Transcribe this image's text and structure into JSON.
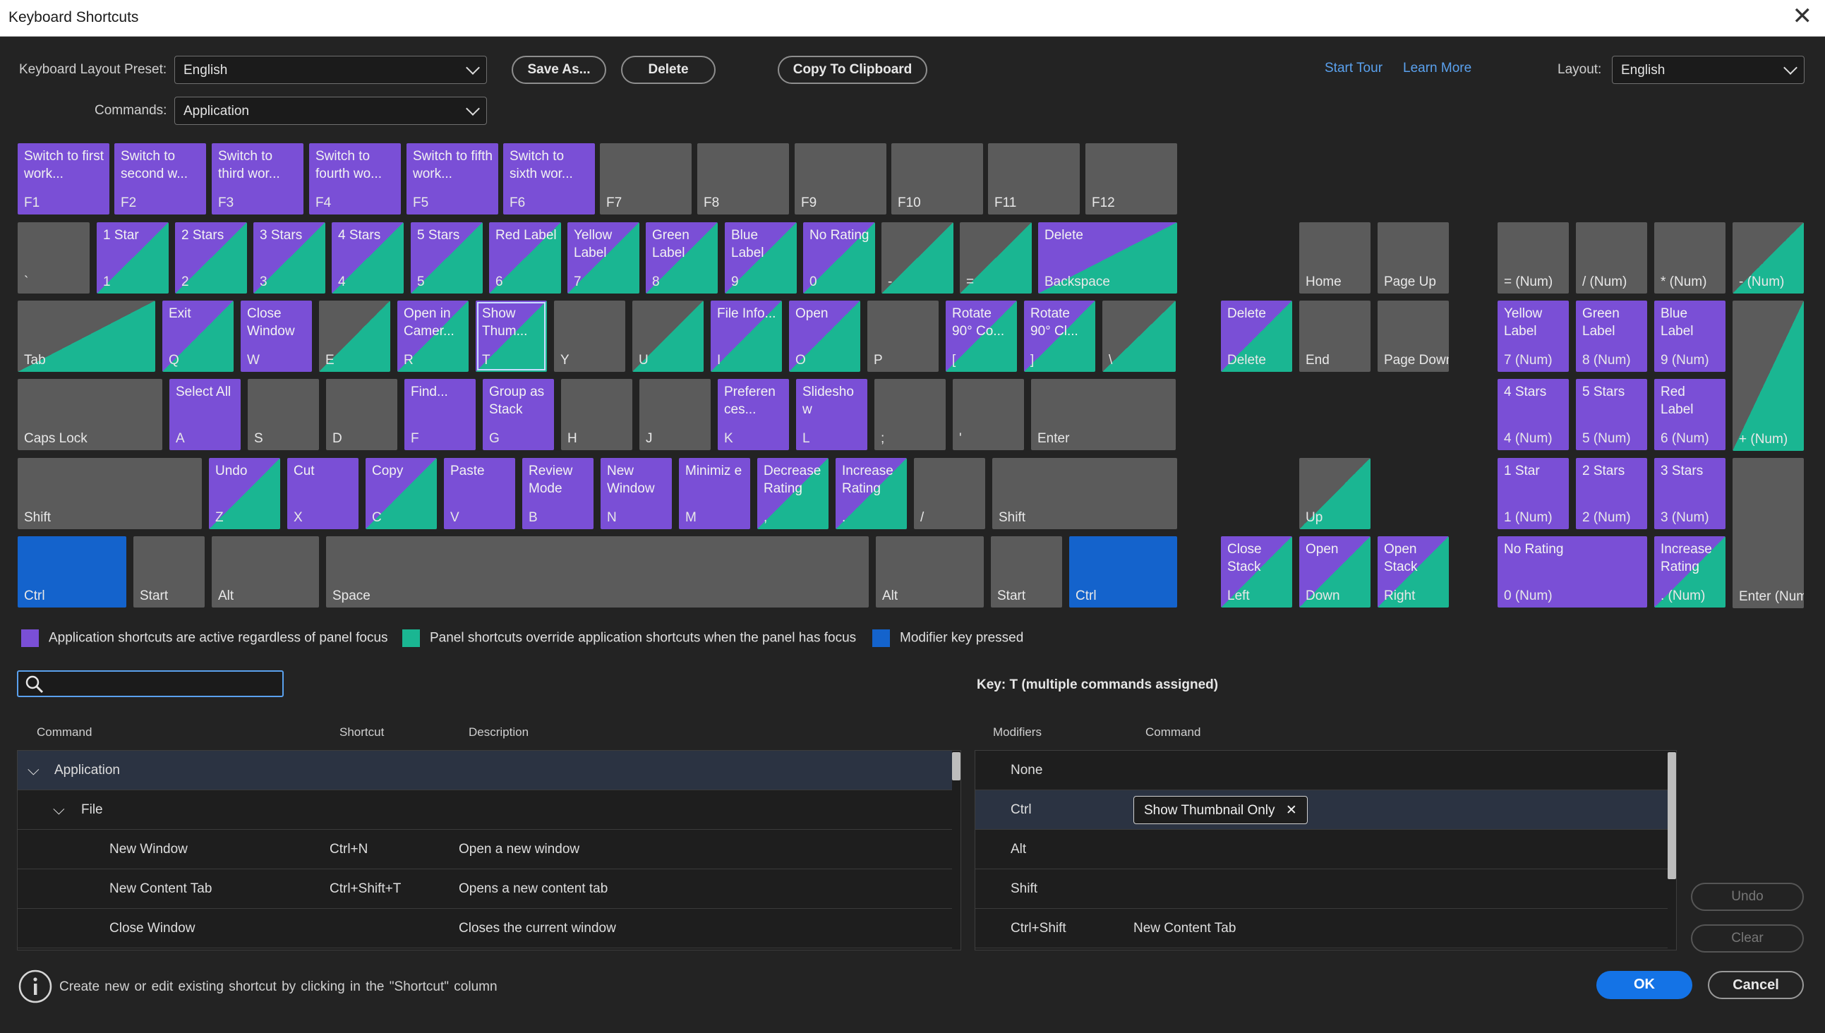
{
  "window": {
    "title": "Keyboard Shortcuts",
    "close": "✕"
  },
  "toolbar": {
    "preset_label": "Keyboard Layout Preset:",
    "preset_value": "English",
    "save_as": "Save As...",
    "delete": "Delete",
    "copy": "Copy To Clipboard",
    "start_tour": "Start Tour",
    "learn_more": "Learn More",
    "layout_label": "Layout:",
    "layout_value": "English",
    "commands_label": "Commands:",
    "commands_value": "Application"
  },
  "keys": [
    {
      "k": "F1",
      "c": "Switch to first work...",
      "t": "app"
    },
    {
      "k": "F2",
      "c": "Switch to second w...",
      "t": "app"
    },
    {
      "k": "F3",
      "c": "Switch to third wor...",
      "t": "app"
    },
    {
      "k": "F4",
      "c": "Switch to fourth wo...",
      "t": "app"
    },
    {
      "k": "F5",
      "c": "Switch to fifth work...",
      "t": "app"
    },
    {
      "k": "F6",
      "c": "Switch to sixth wor...",
      "t": "app"
    },
    {
      "k": "F7",
      "c": "",
      "t": "none"
    },
    {
      "k": "F8",
      "c": "",
      "t": "none"
    },
    {
      "k": "F9",
      "c": "",
      "t": "none"
    },
    {
      "k": "F10",
      "c": "",
      "t": "none"
    },
    {
      "k": "F11",
      "c": "",
      "t": "none"
    },
    {
      "k": "F12",
      "c": "",
      "t": "none"
    },
    {
      "k": "`",
      "c": "",
      "t": "none"
    },
    {
      "k": "1",
      "c": "1 Star",
      "t": "split"
    },
    {
      "k": "2",
      "c": "2 Stars",
      "t": "split"
    },
    {
      "k": "3",
      "c": "3 Stars",
      "t": "split"
    },
    {
      "k": "4",
      "c": "4 Stars",
      "t": "split"
    },
    {
      "k": "5",
      "c": "5 Stars",
      "t": "split"
    },
    {
      "k": "6",
      "c": "Red Label",
      "t": "split"
    },
    {
      "k": "7",
      "c": "Yellow Label",
      "t": "split"
    },
    {
      "k": "8",
      "c": "Green Label",
      "t": "split"
    },
    {
      "k": "9",
      "c": "Blue Label",
      "t": "split"
    },
    {
      "k": "0",
      "c": "No Rating",
      "t": "split"
    },
    {
      "k": "-",
      "c": "",
      "t": "gsplit"
    },
    {
      "k": "=",
      "c": "",
      "t": "gsplit"
    },
    {
      "k": "Backspace",
      "c": "Delete",
      "t": "split"
    },
    {
      "k": "Tab",
      "c": "",
      "t": "gsplit"
    },
    {
      "k": "Q",
      "c": "Exit",
      "t": "split"
    },
    {
      "k": "W",
      "c": "Close Window",
      "t": "app"
    },
    {
      "k": "E",
      "c": "",
      "t": "gsplit"
    },
    {
      "k": "R",
      "c": "Open in Camer...",
      "t": "split"
    },
    {
      "k": "T",
      "c": "Show Thum...",
      "t": "split",
      "sel": true
    },
    {
      "k": "Y",
      "c": "",
      "t": "none"
    },
    {
      "k": "U",
      "c": "",
      "t": "gsplit"
    },
    {
      "k": "I",
      "c": "File Info...",
      "t": "split"
    },
    {
      "k": "O",
      "c": "Open",
      "t": "split"
    },
    {
      "k": "P",
      "c": "",
      "t": "none"
    },
    {
      "k": "[",
      "c": "Rotate 90° Co...",
      "t": "split"
    },
    {
      "k": "]",
      "c": "Rotate 90° Cl...",
      "t": "split"
    },
    {
      "k": "\\",
      "c": "",
      "t": "gsplit"
    },
    {
      "k": "Caps Lock",
      "c": "",
      "t": "none"
    },
    {
      "k": "A",
      "c": "Select All",
      "t": "app"
    },
    {
      "k": "S",
      "c": "",
      "t": "none"
    },
    {
      "k": "D",
      "c": "",
      "t": "none"
    },
    {
      "k": "F",
      "c": "Find...",
      "t": "app"
    },
    {
      "k": "G",
      "c": "Group as Stack",
      "t": "app"
    },
    {
      "k": "H",
      "c": "",
      "t": "none"
    },
    {
      "k": "J",
      "c": "",
      "t": "none"
    },
    {
      "k": "K",
      "c": "Preferen ces...",
      "t": "app"
    },
    {
      "k": "L",
      "c": "Slidesho w",
      "t": "app"
    },
    {
      "k": ";",
      "c": "",
      "t": "none"
    },
    {
      "k": "'",
      "c": "",
      "t": "none"
    },
    {
      "k": "Enter",
      "c": "",
      "t": "none"
    },
    {
      "k": "Shift",
      "c": "",
      "t": "none"
    },
    {
      "k": "Z",
      "c": "Undo",
      "t": "split"
    },
    {
      "k": "X",
      "c": "Cut",
      "t": "app"
    },
    {
      "k": "C",
      "c": "Copy",
      "t": "split"
    },
    {
      "k": "V",
      "c": "Paste",
      "t": "app"
    },
    {
      "k": "B",
      "c": "Review Mode",
      "t": "app"
    },
    {
      "k": "N",
      "c": "New Window",
      "t": "app"
    },
    {
      "k": "M",
      "c": "Minimiz e",
      "t": "app"
    },
    {
      "k": ",",
      "c": "Decrease Rating",
      "t": "split"
    },
    {
      "k": ".",
      "c": "Increase Rating",
      "t": "split"
    },
    {
      "k": "/",
      "c": "",
      "t": "none"
    },
    {
      "k": "Shift",
      "c": "",
      "t": "none"
    },
    {
      "k": "Ctrl",
      "c": "",
      "t": "mod"
    },
    {
      "k": "Start",
      "c": "",
      "t": "none"
    },
    {
      "k": "Alt",
      "c": "",
      "t": "none"
    },
    {
      "k": "Space",
      "c": "",
      "t": "none"
    },
    {
      "k": "Alt",
      "c": "",
      "t": "none"
    },
    {
      "k": "Start",
      "c": "",
      "t": "none"
    },
    {
      "k": "Ctrl",
      "c": "",
      "t": "mod"
    },
    {
      "k": "Home",
      "c": "",
      "t": "none"
    },
    {
      "k": "Page Up",
      "c": "",
      "t": "none"
    },
    {
      "k": "Delete",
      "c": "Delete",
      "t": "split"
    },
    {
      "k": "End",
      "c": "",
      "t": "none"
    },
    {
      "k": "Page Down",
      "c": "",
      "t": "none"
    },
    {
      "k": "Up",
      "c": "",
      "t": "gsplit"
    },
    {
      "k": "Left",
      "c": "Close Stack",
      "t": "split"
    },
    {
      "k": "Down",
      "c": "Open",
      "t": "split"
    },
    {
      "k": "Right",
      "c": "Open Stack",
      "t": "split"
    },
    {
      "k": "= (Num)",
      "c": "",
      "t": "none"
    },
    {
      "k": "/ (Num)",
      "c": "",
      "t": "none"
    },
    {
      "k": "* (Num)",
      "c": "",
      "t": "none"
    },
    {
      "k": "- (Num)",
      "c": "",
      "t": "gsplit"
    },
    {
      "k": "7 (Num)",
      "c": "Yellow Label",
      "t": "app"
    },
    {
      "k": "8 (Num)",
      "c": "Green Label",
      "t": "app"
    },
    {
      "k": "9 (Num)",
      "c": "Blue Label",
      "t": "app"
    },
    {
      "k": "+ (Num)",
      "c": "",
      "t": "gsplit"
    },
    {
      "k": "4 (Num)",
      "c": "4 Stars",
      "t": "app"
    },
    {
      "k": "5 (Num)",
      "c": "5 Stars",
      "t": "app"
    },
    {
      "k": "6 (Num)",
      "c": "Red Label",
      "t": "app"
    },
    {
      "k": "1 (Num)",
      "c": "1 Star",
      "t": "app"
    },
    {
      "k": "2 (Num)",
      "c": "2 Stars",
      "t": "app"
    },
    {
      "k": "3 (Num)",
      "c": "3 Stars",
      "t": "app"
    },
    {
      "k": "Enter (Num)",
      "c": "",
      "t": "none"
    },
    {
      "k": "0 (Num)",
      "c": "No Rating",
      "t": "app"
    },
    {
      "k": ". (Num)",
      "c": "Increase Rating",
      "t": "split"
    }
  ],
  "legend": {
    "app": "Application shortcuts are active regardless of panel focus",
    "panel": "Panel shortcuts override application shortcuts when the panel has focus",
    "modifier": "Modifier key pressed",
    "colors": {
      "app": "#7a4fd6",
      "panel": "#1ab692",
      "modifier": "#1463cc"
    }
  },
  "search": {
    "placeholder": ""
  },
  "key_info": "Key:  T (multiple commands assigned)",
  "left_table": {
    "headers": [
      "Command",
      "Shortcut",
      "Description"
    ],
    "group": "Application",
    "subgroup": "File",
    "rows": [
      {
        "cmd": "New Window",
        "short": "Ctrl+N",
        "desc": "Open a new window"
      },
      {
        "cmd": "New Content Tab",
        "short": "Ctrl+Shift+T",
        "desc": "Opens a new content tab"
      },
      {
        "cmd": "Close Window",
        "short": "",
        "desc": "Closes the current window"
      }
    ]
  },
  "right_table": {
    "headers": [
      "Modifiers",
      "Command"
    ],
    "rows": [
      {
        "mod": "None",
        "cmd": ""
      },
      {
        "mod": "Ctrl",
        "cmd": ""
      },
      {
        "mod": "Alt",
        "cmd": ""
      },
      {
        "mod": "Shift",
        "cmd": ""
      },
      {
        "mod": "Ctrl+Shift",
        "cmd": "New Content Tab"
      }
    ],
    "chip": "Show Thumbnail Only",
    "chip_close": "✕"
  },
  "side_buttons": {
    "undo": "Undo",
    "clear": "Clear"
  },
  "footer": {
    "hint": "Create new or edit existing shortcut by clicking in the \"Shortcut\" column",
    "ok": "OK",
    "cancel": "Cancel"
  }
}
